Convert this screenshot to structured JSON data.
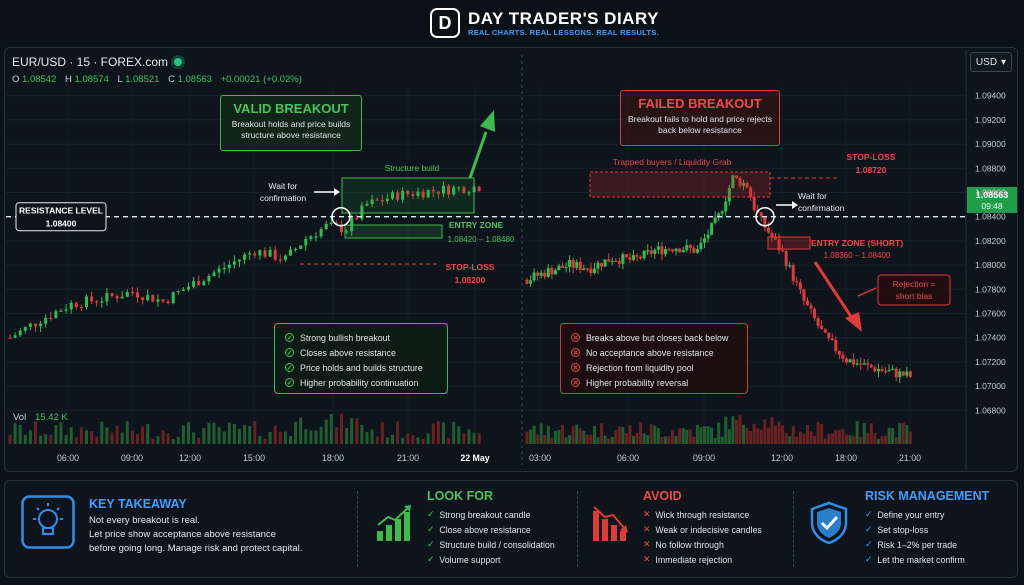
{
  "brand": {
    "mark": "D",
    "title": "DAY TRADER'S DIARY",
    "tagline": "REAL CHARTS. REAL LESSONS. REAL RESULTS."
  },
  "symbol": {
    "ticker": "EUR/USD · 15 · FOREX.com",
    "ohlc": [
      {
        "k": "O",
        "v": "1.08542"
      },
      {
        "k": "H",
        "v": "1.08574"
      },
      {
        "k": "L",
        "v": "1.08521"
      },
      {
        "k": "C",
        "v": "1.08563"
      }
    ],
    "change": "+0.00021 (+0.02%)",
    "currency": "USD",
    "last_price": "1.08563",
    "countdown": "09:48"
  },
  "volume": {
    "label": "Vol",
    "value": "15.42 K"
  },
  "chart_data": {
    "type": "candlestick",
    "y_ticks": [
      1.094,
      1.092,
      1.09,
      1.088,
      1.086,
      1.084,
      1.082,
      1.08,
      1.078,
      1.076,
      1.074,
      1.072,
      1.07,
      1.068
    ],
    "y_tick_labels": [
      "1.09400",
      "1.09200",
      "1.09000",
      "1.08800",
      "1.08600",
      "1.08400",
      "1.08200",
      "1.08000",
      "1.07800",
      "1.07600",
      "1.07400",
      "1.07200",
      "1.07000",
      "1.06800"
    ],
    "ylim": [
      1.0672,
      1.0948
    ],
    "x_tick_labels": [
      "06:00",
      "09:00",
      "12:00",
      "15:00",
      "18:00",
      "21:00",
      "22 May",
      "03:00",
      "06:00",
      "09:00",
      "12:00",
      "18:00",
      "21:00"
    ],
    "resistance": 1.084,
    "session_break_label": "22 May",
    "day1": {
      "start": 1.074,
      "waypoints": [
        [
          0,
          1.074
        ],
        [
          6,
          1.0755
        ],
        [
          12,
          1.0768
        ],
        [
          18,
          1.0772
        ],
        [
          24,
          1.0778
        ],
        [
          30,
          1.077
        ],
        [
          36,
          1.0785
        ],
        [
          42,
          1.0798
        ],
        [
          48,
          1.0812
        ],
        [
          54,
          1.0805
        ],
        [
          58,
          1.0822
        ],
        [
          62,
          1.0832
        ],
        [
          66,
          1.083
        ],
        [
          70,
          1.085
        ],
        [
          76,
          1.0858
        ],
        [
          84,
          1.0862
        ],
        [
          92,
          1.0865
        ]
      ]
    },
    "day2": {
      "waypoints": [
        [
          0,
          1.0788
        ],
        [
          6,
          1.0795
        ],
        [
          12,
          1.08
        ],
        [
          18,
          1.0798
        ],
        [
          24,
          1.0806
        ],
        [
          30,
          1.0804
        ],
        [
          36,
          1.0812
        ],
        [
          42,
          1.0815
        ],
        [
          48,
          1.0812
        ],
        [
          54,
          1.084
        ],
        [
          58,
          1.0872
        ],
        [
          62,
          1.0866
        ],
        [
          64,
          1.0848
        ],
        [
          66,
          1.0836
        ],
        [
          72,
          1.081
        ],
        [
          78,
          1.077
        ],
        [
          84,
          1.074
        ],
        [
          90,
          1.0722
        ],
        [
          96,
          1.0716
        ],
        [
          102,
          1.0712
        ],
        [
          108,
          1.0708
        ]
      ]
    },
    "colors": {
      "up": "#2fbf4f",
      "down": "#e03a3a"
    }
  },
  "annotations": {
    "resistance_label": "RESISTANCE LEVEL",
    "resistance_value": "1.08400",
    "valid_title": "VALID BREAKOUT",
    "valid_text": "Breakout holds and price builds structure above resistance",
    "structure_build": "Structure build",
    "wait_left": "Wait for confirmation",
    "entry_zone_long": "ENTRY ZONE",
    "entry_zone_long_range": "1.08420 – 1.08480",
    "stop_loss_long": "STOP-LOSS",
    "stop_loss_long_value": "1.08200",
    "failed_title": "FAILED BREAKOUT",
    "failed_text": "Breakout fails to hold and price rejects back below resistance",
    "trapped": "Trapped buyers / Liquidity Grab",
    "stop_loss_short": "STOP-LOSS",
    "stop_loss_short_value": "1.08720",
    "wait_right": "Wait for confirmation",
    "entry_zone_short": "ENTRY ZONE (SHORT)",
    "entry_zone_short_range": "1.08360 – 1.08400",
    "rejection": "Rejection = short bias"
  },
  "valid_checklist": [
    "Strong bullish breakout",
    "Closes above resistance",
    "Price holds and builds structure",
    "Higher probability continuation"
  ],
  "failed_checklist": [
    "Breaks above but closes back below",
    "No acceptance above resistance",
    "Rejection from liquidity pool",
    "Higher probability reversal"
  ],
  "takeaway": {
    "title": "KEY TAKEAWAY",
    "text1": "Not every breakout is real.",
    "text2": "Let price show acceptance above resistance",
    "text3": "before going long. Manage risk and protect capital."
  },
  "look_for": {
    "title": "LOOK FOR",
    "items": [
      "Strong breakout candle",
      "Close above resistance",
      "Structure build / consolidation",
      "Volume support"
    ]
  },
  "avoid": {
    "title": "AVOID",
    "items": [
      "Wick through resistance",
      "Weak or indecisive candles",
      "No follow through",
      "Immediate rejection"
    ]
  },
  "risk": {
    "title": "RISK MANAGEMENT",
    "items": [
      "Define your entry",
      "Set stop-loss",
      "Risk 1–2% per trade",
      "Let the market confirm"
    ]
  }
}
